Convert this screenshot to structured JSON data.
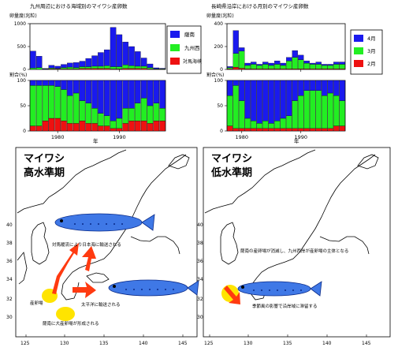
{
  "colors": {
    "blue": "#1a1aee",
    "green": "#22ee22",
    "red": "#ee1111",
    "arrow": "#ff3a10",
    "fish": "#3f78e6",
    "glow": "#ffe400"
  },
  "top_left": {
    "title": "九州周辺における海域別のマイワシ産卵数",
    "ylabel_top": "卵量度(兆粒)",
    "ylabel_bottom": "割合(%)",
    "xlabel": "年",
    "legend": [
      "薩南",
      "九州西",
      "対馬海峡"
    ]
  },
  "top_right": {
    "title": "長崎県沿岸における月別のマイワシ産卵数",
    "ylabel_top": "卵量度(兆粒)",
    "ylabel_bottom": "割合(%)",
    "xlabel": "年",
    "legend": [
      "4月",
      "3月",
      "2月"
    ]
  },
  "map_left": {
    "title1": "マイワシ",
    "title2": "高水準期",
    "annotations": [
      "対馬暖流により日本海に輸送される",
      "太平洋に輸送される",
      "産卵場",
      "薩南に大産卵場が形成される"
    ]
  },
  "map_right": {
    "title1": "マイワシ",
    "title2": "低水準期",
    "annotations": [
      "薩南の産卵場が消滅し、九州西岸が産卵場の主体となる",
      "季節風の影響で沿岸域に滞留する"
    ]
  },
  "map_axes": {
    "x_ticks": [
      "125",
      "130",
      "135",
      "140",
      "145"
    ],
    "y_ticks": [
      "40",
      "38",
      "36",
      "34",
      "32",
      "30"
    ]
  },
  "chart_data": [
    {
      "type": "bar",
      "title": "九州周辺における海域別のマイワシ産卵数",
      "ylabel": "卵量度(兆粒)",
      "xlabel": "年",
      "x": [
        1976,
        1977,
        1978,
        1979,
        1980,
        1981,
        1982,
        1983,
        1984,
        1985,
        1986,
        1987,
        1988,
        1989,
        1990,
        1991,
        1992,
        1993,
        1994,
        1995,
        1996,
        1997
      ],
      "xticks": [
        1980,
        1990
      ],
      "ylim": [
        0,
        1000
      ],
      "yticks": [
        0,
        500,
        1000
      ],
      "series": [
        {
          "name": "薩南",
          "values": [
            370,
            250,
            10,
            60,
            50,
            70,
            90,
            110,
            120,
            180,
            230,
            300,
            350,
            860,
            700,
            500,
            420,
            320,
            180,
            80,
            20,
            10
          ]
        },
        {
          "name": "九州西",
          "values": [
            30,
            40,
            5,
            20,
            10,
            30,
            40,
            30,
            40,
            40,
            50,
            50,
            60,
            50,
            50,
            80,
            60,
            50,
            50,
            30,
            10,
            10
          ]
        },
        {
          "name": "対馬海峡",
          "values": [
            0,
            0,
            5,
            10,
            10,
            10,
            10,
            10,
            20,
            20,
            20,
            20,
            20,
            10,
            10,
            20,
            20,
            20,
            20,
            10,
            5,
            5
          ]
        }
      ]
    },
    {
      "type": "bar",
      "title": "九州周辺における海域別のマイワシ産卵数",
      "ylabel": "割合(%)",
      "xlabel": "年",
      "x": [
        1976,
        1977,
        1978,
        1979,
        1980,
        1981,
        1982,
        1983,
        1984,
        1985,
        1986,
        1987,
        1988,
        1989,
        1990,
        1991,
        1992,
        1993,
        1994,
        1995,
        1996,
        1997
      ],
      "ylim": [
        0,
        100
      ],
      "yticks": [
        0,
        50,
        100
      ],
      "series": [
        {
          "name": "薩南",
          "values": [
            10,
            10,
            10,
            10,
            12,
            18,
            30,
            25,
            40,
            45,
            55,
            65,
            70,
            80,
            75,
            55,
            55,
            45,
            35,
            50,
            45,
            55
          ]
        },
        {
          "name": "九州西",
          "values": [
            80,
            80,
            70,
            65,
            63,
            62,
            55,
            60,
            40,
            40,
            30,
            25,
            20,
            15,
            20,
            30,
            25,
            35,
            45,
            35,
            35,
            25
          ]
        },
        {
          "name": "対馬海峡",
          "values": [
            10,
            10,
            20,
            25,
            25,
            20,
            15,
            15,
            20,
            15,
            15,
            10,
            10,
            5,
            5,
            15,
            20,
            20,
            20,
            15,
            20,
            20
          ]
        }
      ]
    },
    {
      "type": "bar",
      "title": "長崎県沿岸における月別のマイワシ産卵数",
      "ylabel": "卵量度(兆粒)",
      "xlabel": "年",
      "x": [
        1978,
        1979,
        1980,
        1981,
        1982,
        1983,
        1984,
        1985,
        1986,
        1987,
        1988,
        1989,
        1990,
        1991,
        1992,
        1993,
        1994,
        1995,
        1996,
        1997
      ],
      "xticks": [
        1980,
        1990
      ],
      "ylim": [
        0,
        400
      ],
      "yticks": [
        0,
        200,
        400
      ],
      "series": [
        {
          "name": "4月",
          "values": [
            10,
            200,
            30,
            20,
            20,
            10,
            20,
            20,
            30,
            20,
            30,
            60,
            40,
            20,
            10,
            20,
            10,
            10,
            20,
            20
          ]
        },
        {
          "name": "3月",
          "values": [
            10,
            120,
            150,
            30,
            40,
            30,
            40,
            30,
            40,
            30,
            70,
            100,
            80,
            50,
            40,
            40,
            30,
            30,
            40,
            40
          ]
        },
        {
          "name": "2月",
          "values": [
            5,
            20,
            10,
            5,
            5,
            5,
            5,
            5,
            5,
            5,
            5,
            5,
            5,
            5,
            5,
            5,
            5,
            5,
            5,
            5
          ]
        }
      ]
    },
    {
      "type": "bar",
      "title": "長崎県沿岸における月別のマイワシ産卵数",
      "ylabel": "割合(%)",
      "xlabel": "年",
      "x": [
        1978,
        1979,
        1980,
        1981,
        1982,
        1983,
        1984,
        1985,
        1986,
        1987,
        1988,
        1989,
        1990,
        1991,
        1992,
        1993,
        1994,
        1995,
        1996,
        1997
      ],
      "ylim": [
        0,
        100
      ],
      "yticks": [
        0,
        50,
        100
      ],
      "series": [
        {
          "name": "4月",
          "values": [
            30,
            10,
            40,
            75,
            80,
            85,
            80,
            85,
            80,
            75,
            70,
            40,
            30,
            20,
            20,
            20,
            30,
            25,
            30,
            40
          ]
        },
        {
          "name": "3月",
          "values": [
            60,
            85,
            55,
            20,
            15,
            10,
            15,
            10,
            15,
            20,
            25,
            55,
            65,
            75,
            75,
            75,
            65,
            70,
            60,
            50
          ]
        },
        {
          "name": "2月",
          "values": [
            10,
            5,
            5,
            5,
            5,
            5,
            5,
            5,
            5,
            5,
            5,
            5,
            5,
            5,
            5,
            5,
            5,
            5,
            10,
            10
          ]
        }
      ]
    }
  ]
}
